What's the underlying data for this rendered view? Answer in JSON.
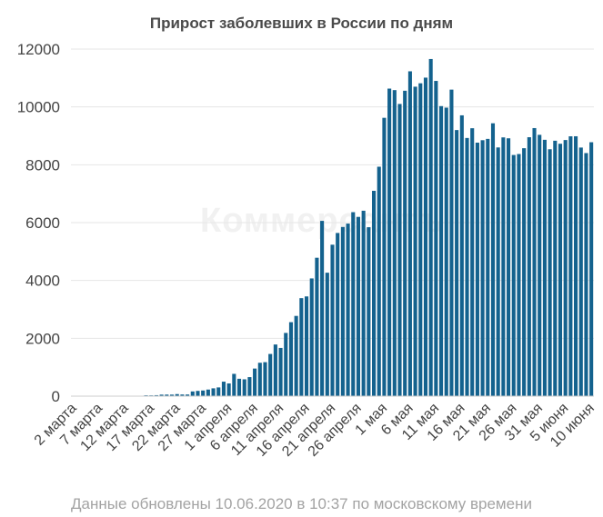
{
  "chart_data": {
    "type": "bar",
    "title": "Прирост заболевших в России по дням",
    "xlabel": "",
    "ylabel": "",
    "ylim": [
      0,
      12000
    ],
    "yticks": [
      0,
      2000,
      4000,
      6000,
      8000,
      10000,
      12000
    ],
    "grid": true,
    "bar_color": "#14628e",
    "x_tick_labels": [
      "2 марта",
      "7 марта",
      "12 марта",
      "17 марта",
      "22 марта",
      "27 марта",
      "1 апреля",
      "6 апреля",
      "11 апреля",
      "16 апреля",
      "21 апреля",
      "26 апреля",
      "1 мая",
      "6 мая",
      "11 мая",
      "16 мая",
      "21 мая",
      "26 мая",
      "31 мая",
      "5 июня",
      "10 июня"
    ],
    "categories": [
      "2 марта",
      "3 марта",
      "4 марта",
      "5 марта",
      "6 марта",
      "7 марта",
      "8 марта",
      "9 марта",
      "10 марта",
      "11 марта",
      "12 марта",
      "13 марта",
      "14 марта",
      "15 марта",
      "16 марта",
      "17 марта",
      "18 марта",
      "19 марта",
      "20 марта",
      "21 марта",
      "22 марта",
      "23 марта",
      "24 марта",
      "25 марта",
      "26 марта",
      "27 марта",
      "28 марта",
      "29 марта",
      "30 марта",
      "31 марта",
      "1 апреля",
      "2 апреля",
      "3 апреля",
      "4 апреля",
      "5 апреля",
      "6 апреля",
      "7 апреля",
      "8 апреля",
      "9 апреля",
      "10 апреля",
      "11 апреля",
      "12 апреля",
      "13 апреля",
      "14 апреля",
      "15 апреля",
      "16 апреля",
      "17 апреля",
      "18 апреля",
      "19 апреля",
      "20 апреля",
      "21 апреля",
      "22 апреля",
      "23 апреля",
      "24 апреля",
      "25 апреля",
      "26 апреля",
      "27 апреля",
      "28 апреля",
      "29 апреля",
      "30 апреля",
      "1 мая",
      "2 мая",
      "3 мая",
      "4 мая",
      "5 мая",
      "6 мая",
      "7 мая",
      "8 мая",
      "9 мая",
      "10 мая",
      "11 мая",
      "12 мая",
      "13 мая",
      "14 мая",
      "15 мая",
      "16 мая",
      "17 мая",
      "18 мая",
      "19 мая",
      "20 мая",
      "21 мая",
      "22 мая",
      "23 мая",
      "24 мая",
      "25 мая",
      "26 мая",
      "27 мая",
      "28 мая",
      "29 мая",
      "30 мая",
      "31 мая",
      "1 июня",
      "2 июня",
      "3 июня",
      "4 июня",
      "5 июня",
      "6 июня",
      "7 июня",
      "8 июня",
      "9 июня",
      "10 июня"
    ],
    "values": [
      1,
      0,
      0,
      1,
      6,
      0,
      4,
      3,
      3,
      8,
      6,
      6,
      14,
      5,
      29,
      27,
      33,
      52,
      54,
      53,
      71,
      57,
      57,
      163,
      182,
      196,
      228,
      270,
      302,
      501,
      440,
      771,
      601,
      582,
      658,
      954,
      1154,
      1175,
      1459,
      1786,
      1667,
      2186,
      2558,
      2774,
      3388,
      3448,
      4070,
      4785,
      6060,
      4268,
      5236,
      5642,
      5849,
      5966,
      6361,
      6198,
      6411,
      5841,
      7099,
      7933,
      9623,
      10633,
      10581,
      10102,
      10559,
      11231,
      10699,
      10817,
      11012,
      11656,
      10899,
      10028,
      9974,
      10598,
      9200,
      9709,
      8926,
      9263,
      8764,
      8849,
      8894,
      9434,
      8599,
      8946,
      8915,
      8338,
      8371,
      8572,
      8952,
      9268,
      9035,
      8863,
      8536,
      8831,
      8726,
      8855,
      8984,
      8985,
      8595,
      8404,
      8779
    ]
  },
  "header": {
    "title": "Прирост заболевших в России по дням"
  },
  "footer": {
    "text": "Данные обновлены 10.06.2020 в 10:37 по московскому времени"
  },
  "watermark": {
    "text": "Коммерсантъ"
  }
}
